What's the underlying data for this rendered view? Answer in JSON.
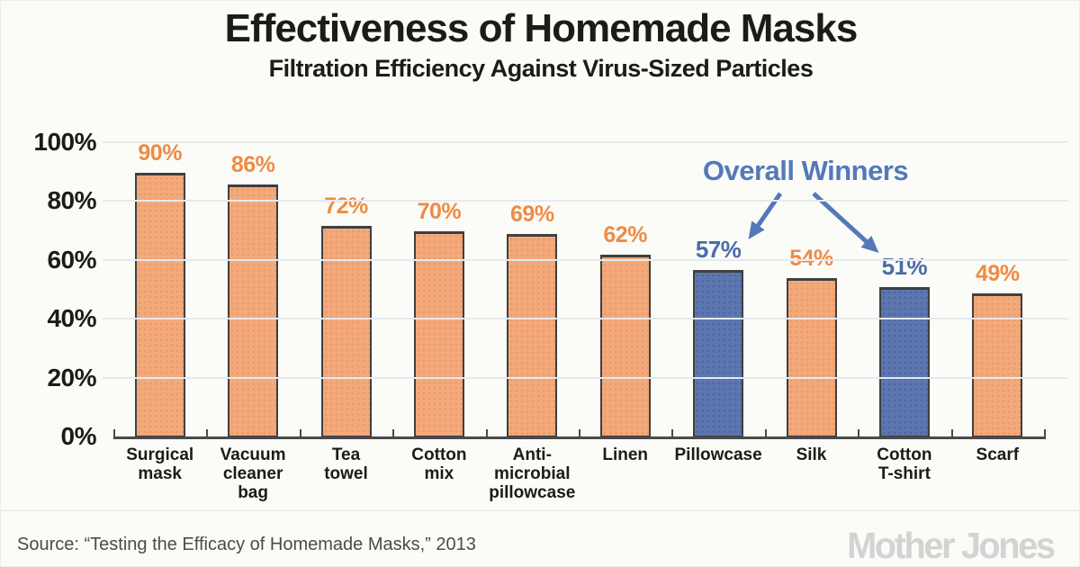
{
  "title": "Effectiveness of Homemade Masks",
  "subtitle": "Filtration Efficiency Against Virus-Sized Particles",
  "annotation_label": "Overall Winners",
  "source_line": "Source: “Testing the Efficacy of Homemade Masks,” 2013",
  "logo_text": "Mother Jones",
  "colors": {
    "bg": "#fbfcf7",
    "outer-border": "#ecefe8",
    "ink": "#1b1b19",
    "orange-bar": "#f4a97a",
    "orange-label": "#ef8b44",
    "blue-bar": "#5c76b0",
    "blue-label": "#4b6bab",
    "annotation": "#5478ba",
    "bar-border": "#3f3f3f",
    "grid": "#e7e9f1",
    "axis": "#4a4a4a",
    "divider": "#e2e2df",
    "source-ink": "#4b4b4b",
    "logo-gray": "#d3d3d3"
  },
  "chart_data": {
    "type": "bar",
    "title": "Effectiveness of Homemade Masks",
    "subtitle": "Filtration Efficiency Against Virus-Sized Particles",
    "categories": [
      "Surgical mask",
      "Vacuum cleaner bag",
      "Tea towel",
      "Cotton mix",
      "Anti-microbial pillowcase",
      "Linen",
      "Pillowcase",
      "Silk",
      "Cotton T-shirt",
      "Scarf"
    ],
    "category_label_lines": [
      [
        "Surgical",
        "mask"
      ],
      [
        "Vacuum",
        "cleaner",
        "bag"
      ],
      [
        "Tea",
        "towel"
      ],
      [
        "Cotton",
        "mix"
      ],
      [
        "Anti-",
        "microbial",
        "pillowcase"
      ],
      [
        "Linen"
      ],
      [
        "Pillowcase"
      ],
      [
        "Silk"
      ],
      [
        "Cotton",
        "T-shirt"
      ],
      [
        "Scarf"
      ]
    ],
    "values": [
      90,
      86,
      72,
      70,
      69,
      62,
      57,
      54,
      51,
      49
    ],
    "unit": "%",
    "winner_indexes": [
      6,
      8
    ],
    "winner_categories": [
      "Pillowcase",
      "Cotton T-shirt"
    ],
    "annotation": "Overall Winners",
    "ytick_values": [
      0,
      20,
      40,
      60,
      80,
      100
    ],
    "ytick_labels": [
      "0%",
      "20%",
      "40%",
      "60%",
      "80%",
      "100%"
    ],
    "ylim": [
      0,
      100
    ],
    "grid": true,
    "legend": "none",
    "value_labels_shown": true
  }
}
